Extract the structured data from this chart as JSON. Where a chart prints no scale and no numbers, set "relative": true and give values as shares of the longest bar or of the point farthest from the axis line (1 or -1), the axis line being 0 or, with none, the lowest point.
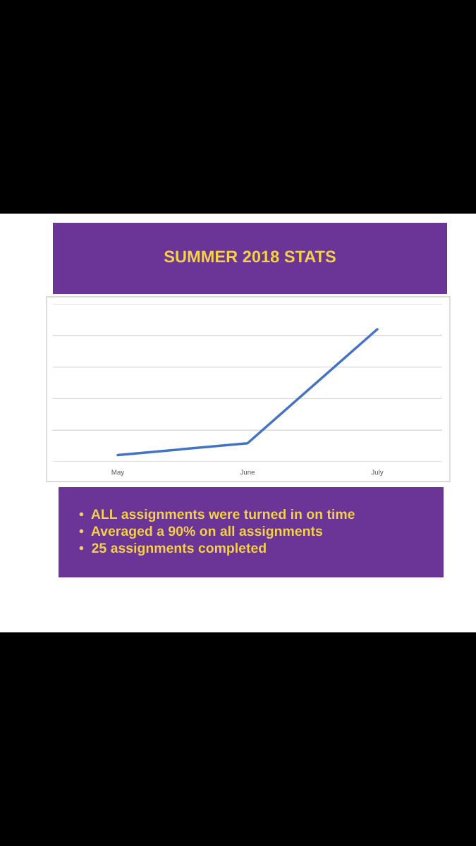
{
  "chart_data": {
    "type": "line",
    "title": "SUMMER 2018 STATS",
    "categories": [
      "May",
      "June",
      "July"
    ],
    "series": [
      {
        "color": "#4472c4",
        "values": [
          0.05,
          0.14,
          1
        ]
      }
    ],
    "relative": true,
    "grid": "y",
    "legend": false,
    "marker": "none",
    "line_style": "solid",
    "annotations": [
      "•  ALL assignments were turned in on time",
      "•  Averaged a 90% on all assignments",
      "•  25 assignments completed"
    ]
  }
}
